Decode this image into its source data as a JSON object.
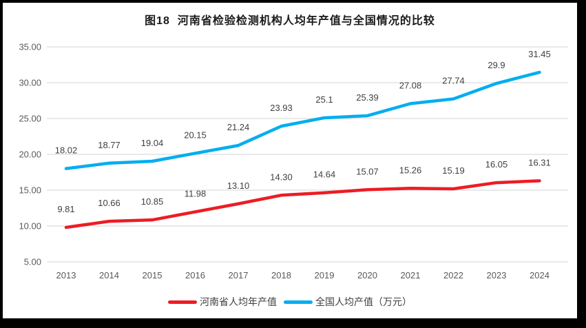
{
  "title": "图18  河南省检验检测机构人均年产值与全国情况的比较",
  "frame": {
    "border_color": "#000000",
    "background": "#ffffff"
  },
  "chart_data": {
    "type": "line",
    "title": "图18  河南省检验检测机构人均年产值与全国情况的比较",
    "x": [
      "2013",
      "2014",
      "2015",
      "2016",
      "2017",
      "2018",
      "2019",
      "2020",
      "2021",
      "2022",
      "2023",
      "2024"
    ],
    "series": [
      {
        "name": "河南省人均年产值",
        "color": "#ED1C24",
        "values": [
          9.81,
          10.66,
          10.85,
          11.98,
          13.1,
          14.3,
          14.64,
          15.07,
          15.26,
          15.19,
          16.05,
          16.31
        ],
        "labels": [
          "9.81",
          "10.66",
          "10.85",
          "11.98",
          "13.10",
          "14.30",
          "14.64",
          "15.07",
          "15.26",
          "15.19",
          "16.05",
          "16.31"
        ]
      },
      {
        "name": "全国人均产值（万元）",
        "color": "#00AEEF",
        "values": [
          18.02,
          18.77,
          19.04,
          20.15,
          21.24,
          23.93,
          25.1,
          25.39,
          27.08,
          27.74,
          29.9,
          31.45
        ],
        "labels": [
          "18.02",
          "18.77",
          "19.04",
          "20.15",
          "21.24",
          "23.93",
          "25.1",
          "25.39",
          "27.08",
          "27.74",
          "29.9",
          "31.45"
        ]
      }
    ],
    "ylim": [
      5,
      35
    ],
    "ytick_step": 5,
    "ytick_labels": [
      "5.00",
      "10.00",
      "15.00",
      "20.00",
      "25.00",
      "30.00",
      "35.00"
    ],
    "xlabel": "",
    "ylabel": "",
    "grid": "horizontal-only",
    "gridline_color": "#DCDCDC",
    "tick_label_color": "#595959",
    "data_label_color": "#3f3f3f",
    "legend_position": "bottom",
    "line_width": 4.5,
    "markers": "none"
  }
}
